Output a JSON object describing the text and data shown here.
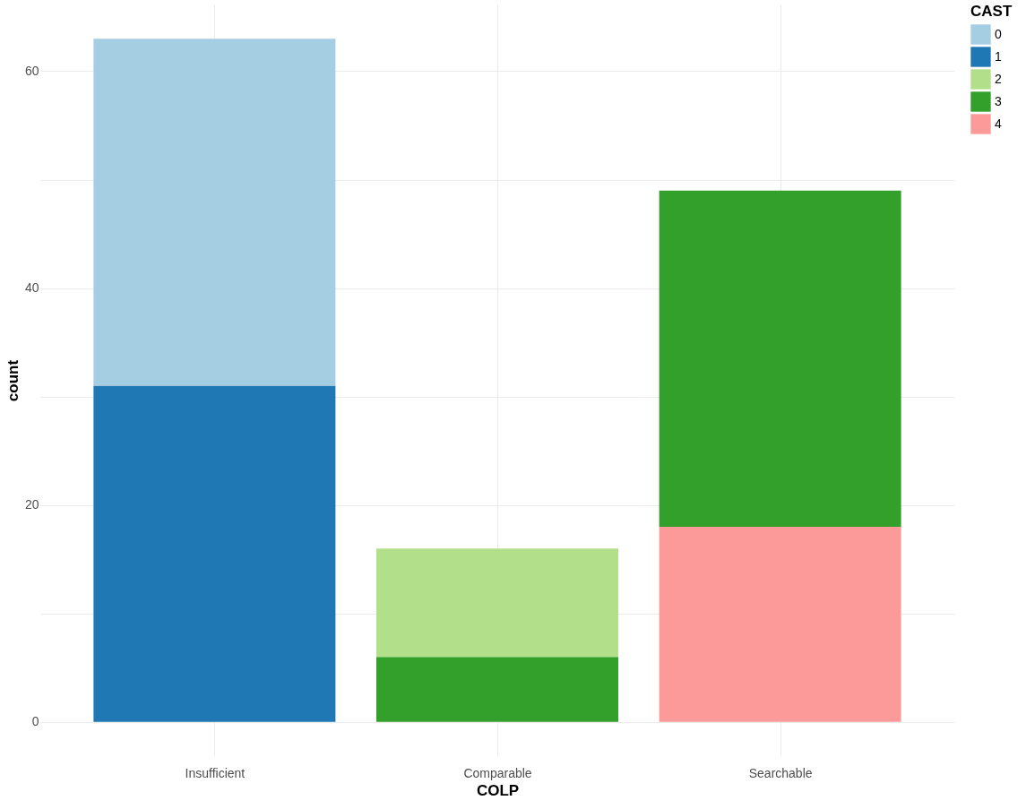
{
  "chart_data": {
    "type": "bar",
    "stacked": true,
    "xlabel": "COLP",
    "ylabel": "count",
    "legend_title": "CAST",
    "legend": "right",
    "grid": true,
    "categories": [
      "Insufficient",
      "Comparable",
      "Searchable"
    ],
    "series": [
      {
        "name": "4",
        "color": "#fb9a99",
        "values": [
          null,
          null,
          18
        ]
      },
      {
        "name": "3",
        "color": "#33a02c",
        "values": [
          null,
          6,
          31
        ]
      },
      {
        "name": "2",
        "color": "#b2df8a",
        "values": [
          null,
          10,
          null
        ]
      },
      {
        "name": "1",
        "color": "#1f78b4",
        "values": [
          31,
          null,
          null
        ]
      },
      {
        "name": "0",
        "color": "#a6cee3",
        "values": [
          32,
          null,
          null
        ]
      }
    ],
    "ylim": [
      -3.15,
      66.15
    ],
    "yticks": [
      0,
      {
        "value": 10,
        "label": null
      },
      20,
      {
        "value": 30,
        "label": null
      },
      40,
      {
        "value": 50,
        "label": null
      },
      60
    ]
  }
}
